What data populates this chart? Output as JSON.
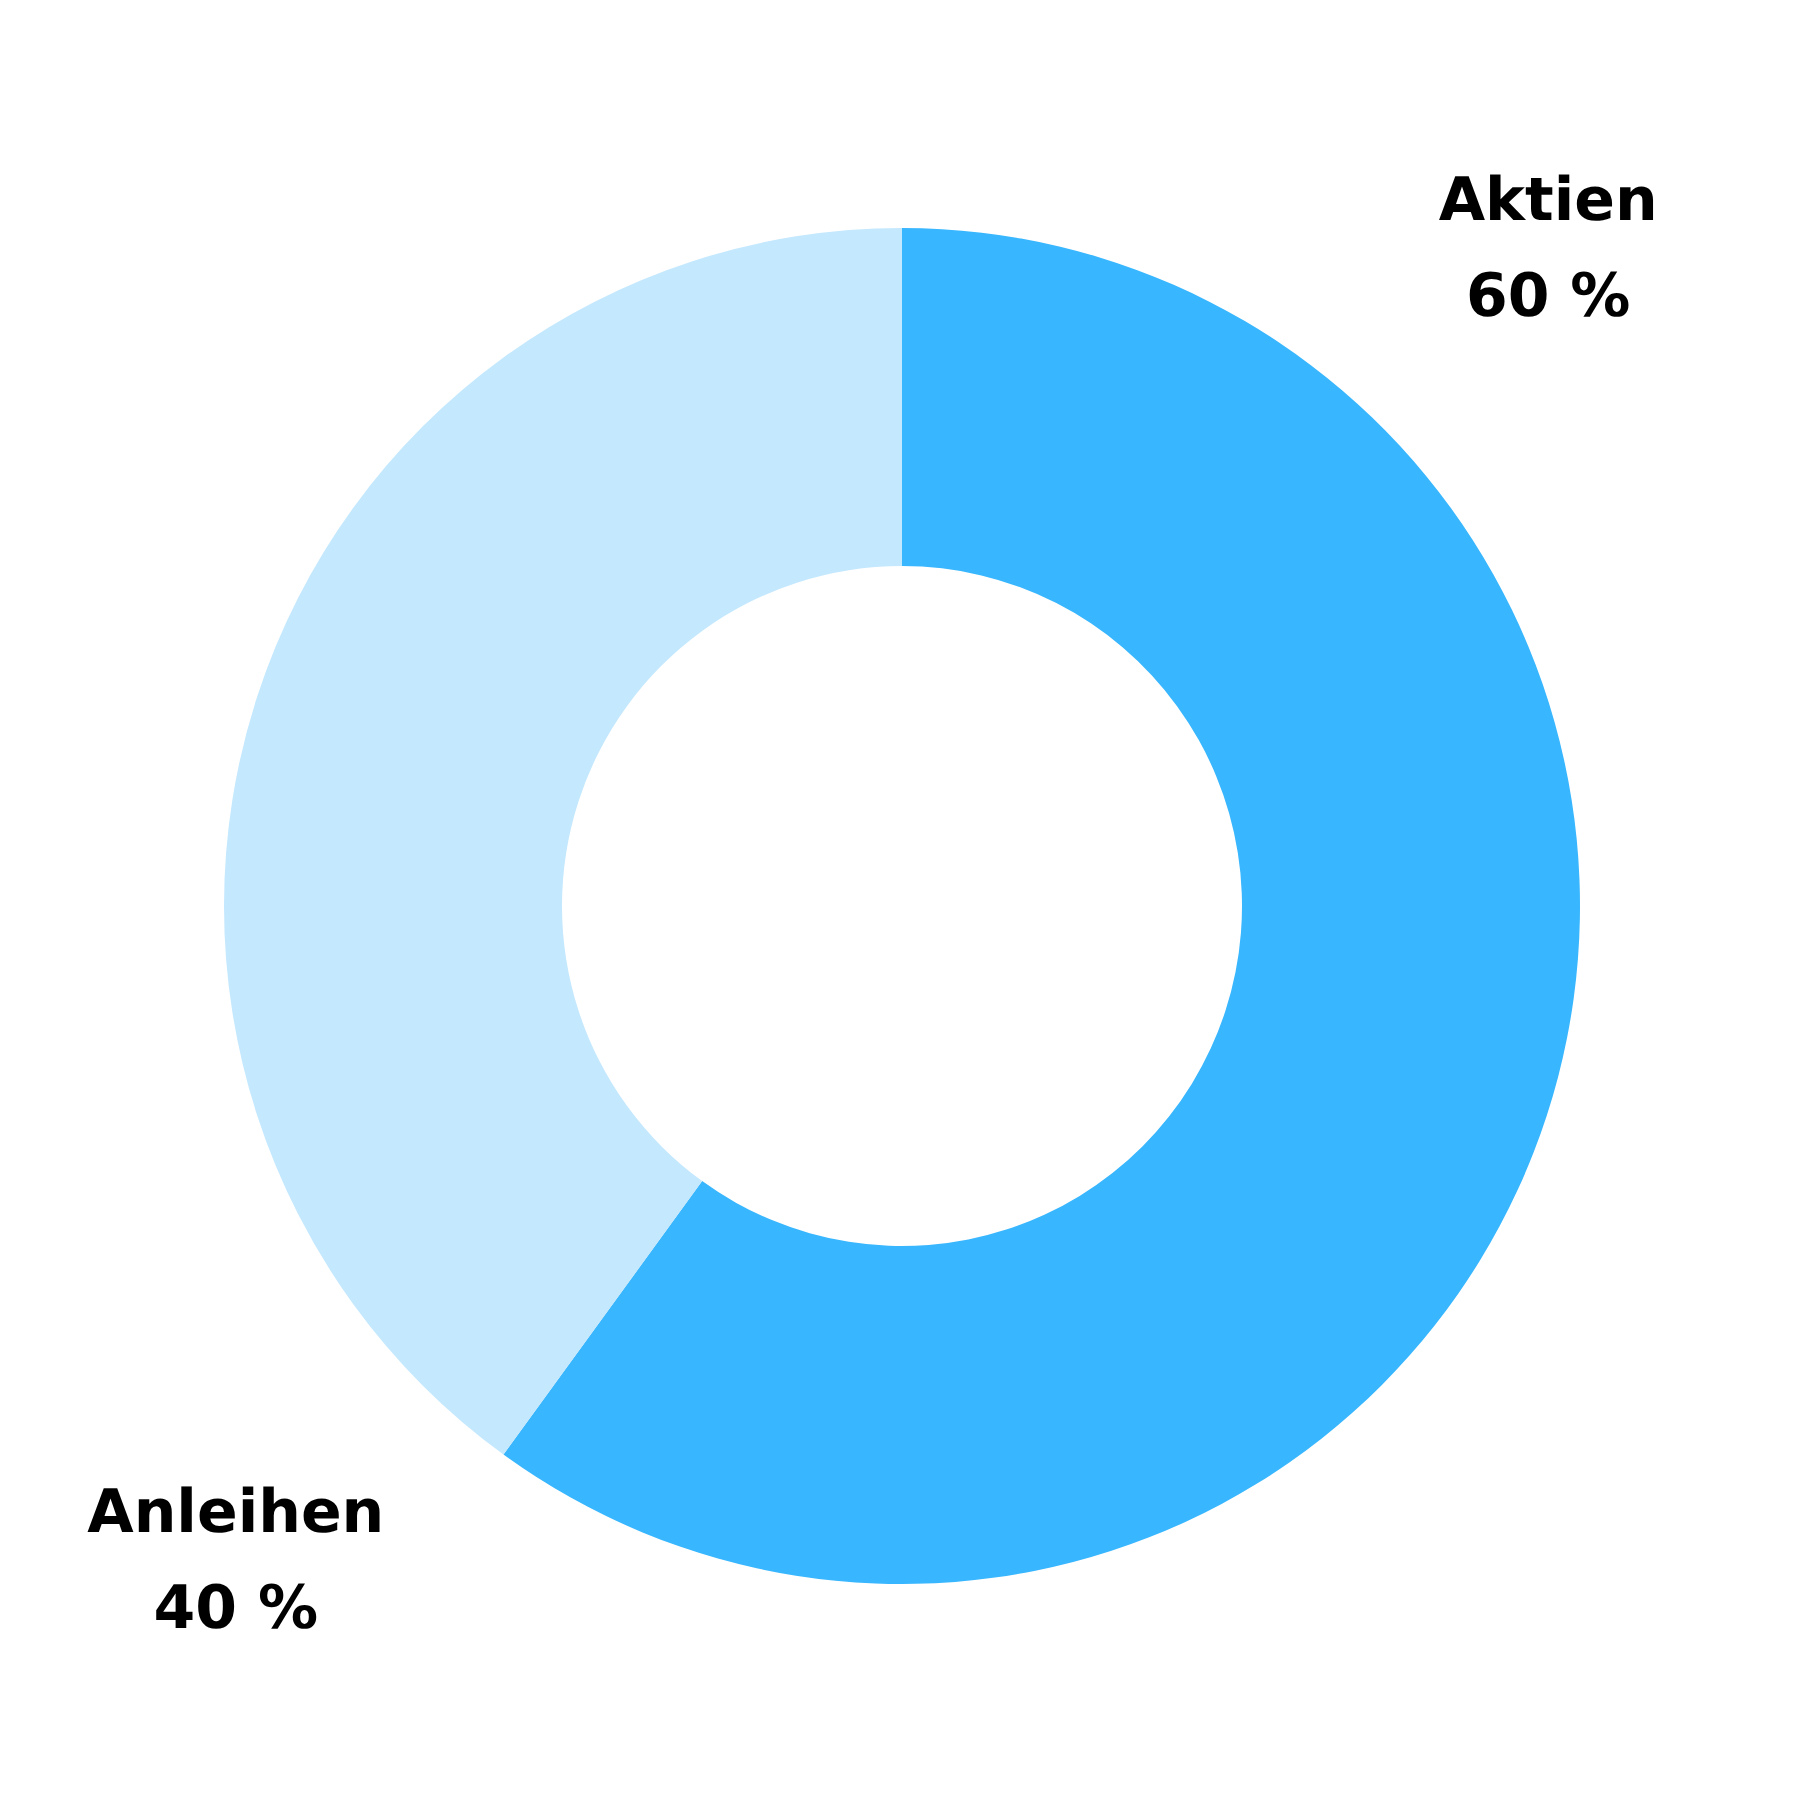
{
  "chart_data": {
    "type": "donut",
    "categories": [
      "Aktien",
      "Anleihen"
    ],
    "values": [
      60,
      40
    ],
    "colors": [
      "#38b6ff",
      "#c4e8fe"
    ],
    "value_labels": [
      "60 %",
      "40 %"
    ]
  }
}
